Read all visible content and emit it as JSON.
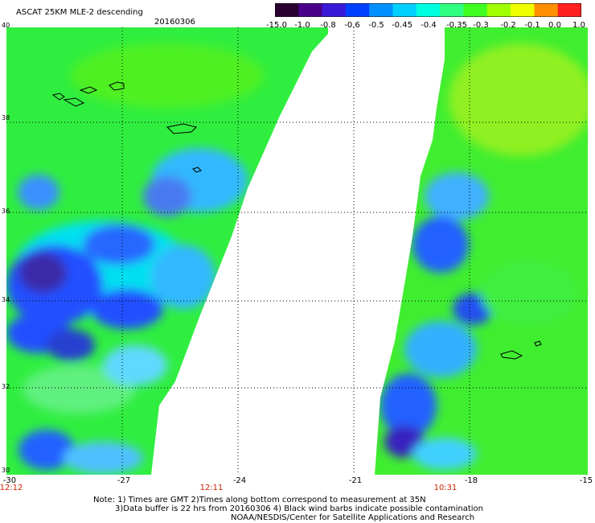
{
  "header": {
    "title": "ASCAT 25KM MLE-2 descending",
    "date": "20160306"
  },
  "colorbar": {
    "labels": [
      "-15.0",
      "-1.0",
      "-0.8",
      "-0.6",
      "-0.5",
      "-0.45",
      "-0.4",
      "-0.35",
      "-0.3",
      "-0.2",
      "-0.1",
      "0.0",
      "1.0"
    ],
    "colors": [
      "#2a0030",
      "#4a008a",
      "#3a1ad8",
      "#0040ff",
      "#0090ff",
      "#00d0ff",
      "#00ffe0",
      "#30ff80",
      "#40ff20",
      "#a0ff00",
      "#f0ff00",
      "#ff9000",
      "#ff2020"
    ]
  },
  "map": {
    "lat_labels": [
      "40",
      "38",
      "36",
      "34",
      "32",
      "30"
    ],
    "lon_labels": [
      "-30",
      "-27",
      "-24",
      "-21",
      "-18",
      "-15"
    ],
    "lat_range": [
      30,
      40
    ],
    "lon_range": [
      -30,
      -15
    ],
    "swath_times": [
      "12:12",
      "12:11",
      "10:31"
    ]
  },
  "footer": {
    "line1": "Note: 1) Times are GMT 2)Times along bottom correspond to measurement at 35N",
    "line2": "3)Data buffer is 22 hrs from 20160306 4) Black wind barbs indicate possible contamination",
    "line3": "NOAA/NESDIS/Center for Satellite Applications and Research"
  }
}
